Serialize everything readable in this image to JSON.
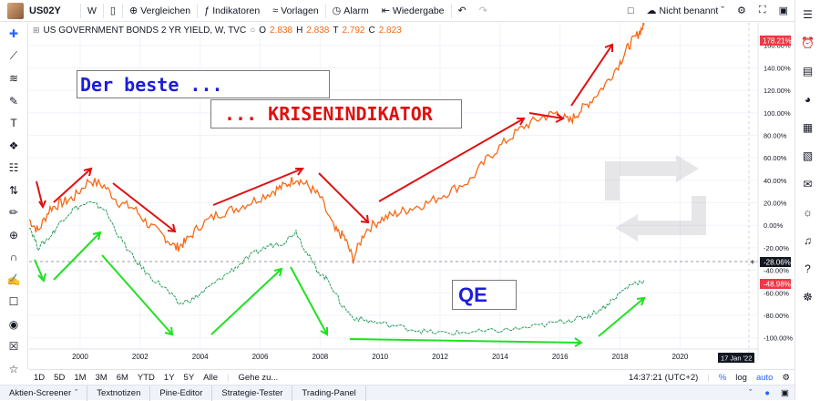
{
  "toolbar": {
    "symbol": "US02Y",
    "interval": "W",
    "compare": "Vergleichen",
    "indicators": "Indikatoren",
    "templates": "Vorlagen",
    "alert": "Alarm",
    "replay": "Wiedergabe",
    "layout_name": "Nicht benannt"
  },
  "legend": {
    "title": "US GOVERNMENT BONDS 2 YR YIELD, W, TVC",
    "o_label": "O",
    "o_value": "2.838",
    "h_label": "H",
    "h_value": "2.838",
    "t_label": "T",
    "t_value": "2.792",
    "c_label": "C",
    "c_value": "2.823"
  },
  "annotations": {
    "box1": "Der beste ...",
    "box2": "... KRISENINDIKATOR",
    "box3": "QE"
  },
  "price_tags": {
    "top": "178.21%",
    "crosshair": "-28.06%",
    "second": "-48.98%",
    "date": "17 Jan '22"
  },
  "bottombar": {
    "ranges": [
      "1D",
      "5D",
      "1M",
      "3M",
      "6M",
      "YTD",
      "1Y",
      "5Y",
      "Alle"
    ],
    "goto": "Gehe zu...",
    "time": "14:37:21 (UTC+2)",
    "percent": "%",
    "log": "log",
    "auto": "auto"
  },
  "tabs": [
    "Aktien-Screener",
    "Textnotizen",
    "Pine-Editor",
    "Strategie-Tester",
    "Trading-Panel"
  ],
  "colors": {
    "series_orange": "#f56a16",
    "arrow_red": "#e01010",
    "arrow_green": "#22e022",
    "tag_red": "#f23645"
  },
  "chart_data": {
    "type": "line",
    "x_ticks": [
      "2000",
      "2002",
      "2004",
      "2006",
      "2008",
      "2010",
      "2012",
      "2014",
      "2016",
      "2018",
      "2020"
    ],
    "y_ticks": [
      "160.00%",
      "140.00%",
      "120.00%",
      "100.00%",
      "80.00%",
      "60.00%",
      "40.00%",
      "20.00%",
      "0.00%",
      "-20.00%",
      "-40.00%",
      "-60.00%",
      "-80.00%",
      "-100.00%"
    ],
    "ylim": [
      -110,
      180
    ],
    "xlim": [
      1998.3,
      2022.6
    ],
    "series": [
      {
        "color": "#f56a16",
        "points": [
          [
            1998.3,
            5
          ],
          [
            1998.6,
            -5
          ],
          [
            1999.0,
            15
          ],
          [
            1999.4,
            20
          ],
          [
            1999.8,
            25
          ],
          [
            2000.3,
            40
          ],
          [
            2000.8,
            35
          ],
          [
            2001.3,
            20
          ],
          [
            2001.8,
            15
          ],
          [
            2002.3,
            0
          ],
          [
            2002.8,
            -10
          ],
          [
            2003.2,
            -20
          ],
          [
            2003.5,
            -15
          ],
          [
            2004.0,
            0
          ],
          [
            2004.6,
            10
          ],
          [
            2005.2,
            15
          ],
          [
            2005.8,
            22
          ],
          [
            2006.4,
            30
          ],
          [
            2006.8,
            35
          ],
          [
            2007.2,
            42
          ],
          [
            2007.6,
            35
          ],
          [
            2008.0,
            25
          ],
          [
            2008.5,
            -5
          ],
          [
            2008.8,
            -10
          ],
          [
            2009.1,
            -30
          ],
          [
            2009.5,
            -5
          ],
          [
            2010.0,
            5
          ],
          [
            2010.5,
            10
          ],
          [
            2011.0,
            15
          ],
          [
            2011.6,
            20
          ],
          [
            2012.3,
            30
          ],
          [
            2013.0,
            40
          ],
          [
            2013.6,
            60
          ],
          [
            2014.2,
            75
          ],
          [
            2014.8,
            88
          ],
          [
            2015.4,
            96
          ],
          [
            2015.9,
            100
          ],
          [
            2016.3,
            92
          ],
          [
            2016.6,
            100
          ],
          [
            2017.0,
            110
          ],
          [
            2017.5,
            125
          ],
          [
            2018.0,
            145
          ],
          [
            2018.3,
            160
          ],
          [
            2018.6,
            170
          ],
          [
            2018.8,
            178
          ]
        ]
      },
      {
        "color": "#2a9d5c",
        "points": [
          [
            1998.3,
            0
          ],
          [
            1998.6,
            -20
          ],
          [
            1999.0,
            -10
          ],
          [
            1999.4,
            5
          ],
          [
            1999.8,
            15
          ],
          [
            2000.3,
            20
          ],
          [
            2000.8,
            15
          ],
          [
            2001.3,
            -10
          ],
          [
            2001.8,
            -30
          ],
          [
            2002.3,
            -45
          ],
          [
            2002.8,
            -55
          ],
          [
            2003.3,
            -70
          ],
          [
            2003.8,
            -65
          ],
          [
            2004.3,
            -55
          ],
          [
            2004.8,
            -45
          ],
          [
            2005.3,
            -35
          ],
          [
            2005.8,
            -25
          ],
          [
            2006.3,
            -18
          ],
          [
            2006.8,
            -15
          ],
          [
            2007.2,
            -5
          ],
          [
            2007.5,
            -22
          ],
          [
            2007.9,
            -40
          ],
          [
            2008.3,
            -50
          ],
          [
            2008.7,
            -70
          ],
          [
            2009.1,
            -82
          ],
          [
            2009.6,
            -85
          ],
          [
            2010.2,
            -88
          ],
          [
            2011.0,
            -92
          ],
          [
            2011.6,
            -95
          ],
          [
            2012.3,
            -96
          ],
          [
            2013.0,
            -95
          ],
          [
            2013.8,
            -94
          ],
          [
            2014.6,
            -92
          ],
          [
            2015.4,
            -89
          ],
          [
            2016.1,
            -85
          ],
          [
            2016.6,
            -83
          ],
          [
            2017.0,
            -80
          ],
          [
            2017.5,
            -72
          ],
          [
            2018.0,
            -60
          ],
          [
            2018.4,
            -52
          ],
          [
            2018.8,
            -49
          ]
        ]
      }
    ]
  }
}
